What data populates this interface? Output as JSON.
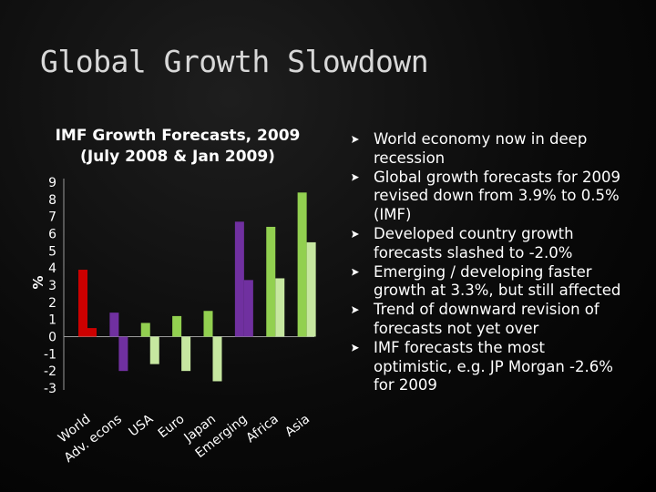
{
  "slide": {
    "title": "Global Growth Slowdown",
    "bullets": [
      "World economy now in deep recession",
      "Global growth forecasts for 2009 revised down from 3.9% to 0.5% (IMF)",
      "Developed country growth forecasts slashed to -2.0%",
      "Emerging / developing faster growth at 3.3%, but still affected",
      "Trend of downward revision of forecasts not yet over",
      "IMF forecasts the most optimistic, e.g. JP Morgan -2.6% for 2009"
    ]
  },
  "chart_data": {
    "type": "bar",
    "title": "IMF Growth Forecasts, 2009 (July 2008 & Jan 2009)",
    "ylabel": "%",
    "xlabel": "",
    "ylim": [
      -3,
      9
    ],
    "yticks": [
      9,
      8,
      7,
      6,
      5,
      4,
      3,
      2,
      1,
      0,
      -1,
      -2,
      -3
    ],
    "categories": [
      "World",
      "Adv. econs",
      "USA",
      "Euro",
      "Japan",
      "Emerging",
      "Africa",
      "Asia"
    ],
    "grid": false,
    "legend": "none",
    "groups": [
      {
        "category": "World",
        "values": [
          3.9,
          0.5
        ],
        "colors": [
          "#cc0000",
          "#cc0000"
        ]
      },
      {
        "category": "Adv. econs",
        "values": [
          1.4,
          -2.0
        ],
        "colors": [
          "#7030a0",
          "#7030a0"
        ]
      },
      {
        "category": "USA",
        "values": [
          0.8,
          -1.6
        ],
        "colors": [
          "#92d050",
          "#c6e7a0"
        ]
      },
      {
        "category": "Euro",
        "values": [
          1.2,
          -2.0
        ],
        "colors": [
          "#92d050",
          "#c6e7a0"
        ]
      },
      {
        "category": "Japan",
        "values": [
          1.5,
          -2.6
        ],
        "colors": [
          "#92d050",
          "#c6e7a0"
        ]
      },
      {
        "category": "Emerging",
        "values": [
          6.7,
          3.3
        ],
        "colors": [
          "#7030a0",
          "#7030a0"
        ]
      },
      {
        "category": "Africa",
        "values": [
          6.4,
          3.4
        ],
        "colors": [
          "#92d050",
          "#c6e7a0"
        ]
      },
      {
        "category": "Asia",
        "values": [
          8.4,
          5.5
        ],
        "colors": [
          "#92d050",
          "#c6e7a0"
        ]
      }
    ]
  }
}
